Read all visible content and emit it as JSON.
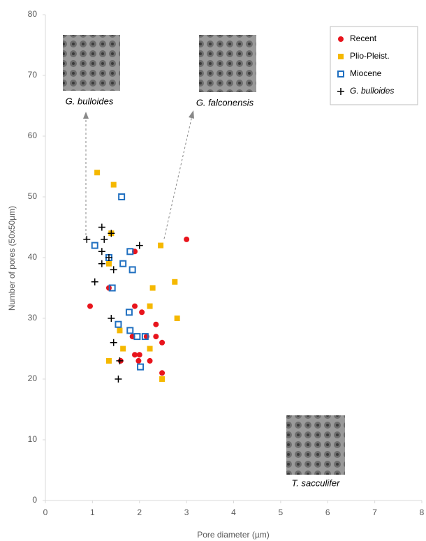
{
  "chart_data": {
    "type": "scatter",
    "xlabel": "Pore diameter (µm)",
    "ylabel": "Number of pores (50x50µm)",
    "xlim": [
      0,
      8
    ],
    "ylim": [
      0,
      80
    ],
    "xticks": [
      0,
      1,
      2,
      3,
      4,
      5,
      6,
      7,
      8
    ],
    "yticks": [
      0,
      10,
      20,
      30,
      40,
      50,
      60,
      70,
      80
    ],
    "legend": "top-right",
    "annotations": [
      "G. bulloides",
      "G. falconensis",
      "T. sacculifer"
    ],
    "series": [
      {
        "name": "Recent",
        "color": "#e8141c",
        "marker": "circle",
        "x": [
          0.95,
          1.35,
          1.9,
          3.0,
          1.9,
          2.05,
          2.35,
          1.85,
          2.35,
          2.48,
          2.15,
          1.9,
          2.0,
          1.98,
          2.22,
          1.6,
          2.48
        ],
        "values": [
          32,
          35,
          41,
          43,
          32,
          31,
          29,
          27,
          27,
          26,
          27,
          24,
          24,
          23,
          23,
          23,
          21
        ]
      },
      {
        "name": "Plio-Pleist.",
        "color": "#f5b800",
        "marker": "square",
        "x": [
          1.1,
          1.45,
          1.4,
          1.35,
          2.45,
          2.75,
          2.28,
          2.22,
          2.8,
          1.58,
          1.65,
          2.22,
          1.35,
          2.48
        ],
        "values": [
          54,
          52,
          44,
          39,
          42,
          36,
          35,
          32,
          30,
          28,
          25,
          25,
          23,
          20
        ]
      },
      {
        "name": "Miocene",
        "color": "#1f6fc0",
        "marker": "hollow-square",
        "x": [
          1.62,
          1.05,
          1.35,
          1.8,
          1.65,
          1.85,
          1.42,
          1.78,
          1.55,
          1.8,
          1.95,
          2.12,
          2.02
        ],
        "values": [
          50,
          42,
          40,
          41,
          39,
          38,
          35,
          31,
          29,
          28,
          27,
          27,
          22
        ]
      },
      {
        "name": "G. bulloides",
        "color": "#000000",
        "marker": "plus",
        "x": [
          0.88,
          1.2,
          1.4,
          1.25,
          1.2,
          1.35,
          1.2,
          1.45,
          1.05,
          2.0,
          1.4,
          1.45,
          1.58,
          1.55
        ],
        "values": [
          43,
          45,
          44,
          43,
          41,
          40,
          39,
          38,
          36,
          42,
          30,
          26,
          23,
          20
        ]
      }
    ]
  }
}
